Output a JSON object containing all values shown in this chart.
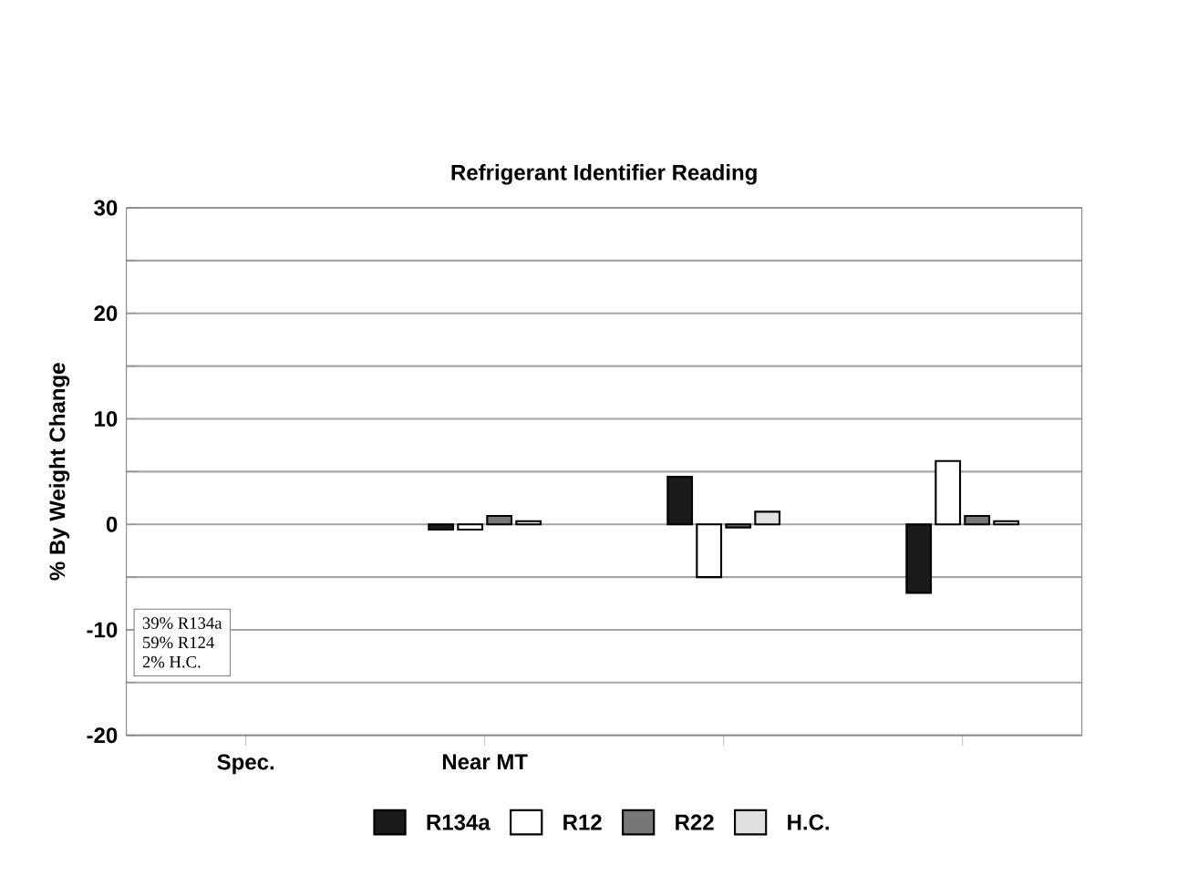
{
  "chart_data": {
    "type": "bar",
    "title": "Refrigerant Identifier Reading",
    "ylabel": "% By Weight Change",
    "categories": [
      "Spec.",
      "Near MT",
      null,
      null
    ],
    "series": [
      {
        "name": "R134a",
        "color": "#1a1a1a",
        "values": [
          null,
          -0.5,
          4.5,
          -6.5
        ]
      },
      {
        "name": "R12",
        "color": "#ffffff",
        "values": [
          null,
          -0.5,
          -5,
          6
        ]
      },
      {
        "name": "R22",
        "color": "#777777",
        "values": [
          null,
          0.8,
          -0.3,
          0.8
        ]
      },
      {
        "name": "H.C.",
        "color": "#e0e0e0",
        "values": [
          null,
          0.3,
          1.2,
          0.3
        ]
      }
    ],
    "ylim": [
      -20,
      30
    ],
    "yticks": [
      -20,
      {
        "value": -15,
        "label": null
      },
      -10,
      {
        "value": -5,
        "label": null
      },
      0,
      {
        "value": 5,
        "label": null
      },
      10,
      {
        "value": 15,
        "label": null
      },
      20,
      {
        "value": 25,
        "label": null
      },
      30
    ],
    "grid": "y",
    "legend": "bottom",
    "annotations": [
      "39% R134a",
      "59% R124",
      "2% H.C."
    ]
  }
}
